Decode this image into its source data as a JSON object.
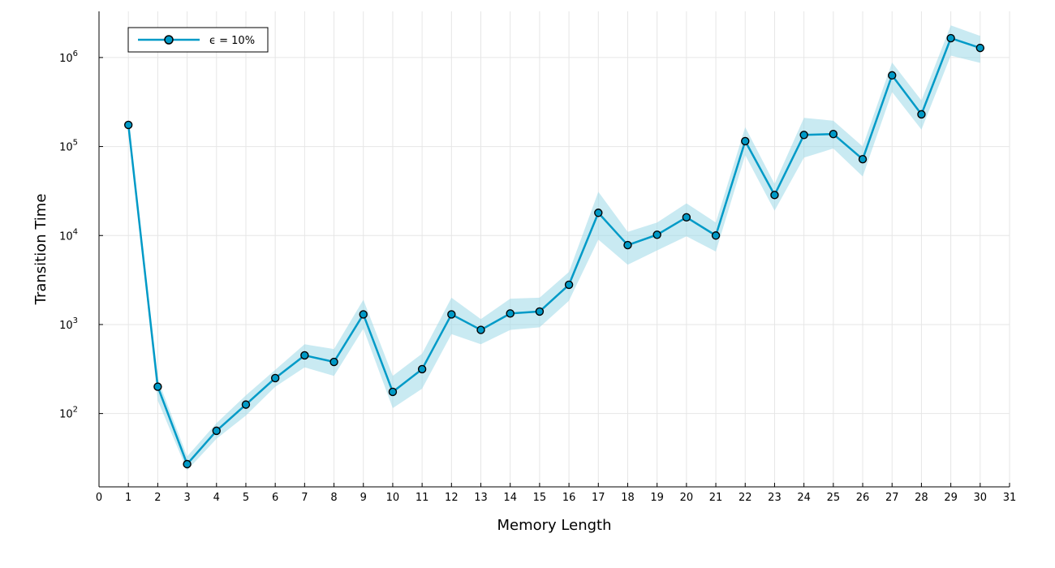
{
  "chart_data": {
    "type": "line",
    "xlabel": "Memory Length",
    "ylabel": "Transition Time",
    "xlim": [
      0,
      31
    ],
    "ylim": [
      15,
      3300000
    ],
    "yscale": "log",
    "grid": true,
    "legend_placement": "top-left",
    "xticks": [
      0,
      1,
      2,
      3,
      4,
      5,
      6,
      7,
      8,
      9,
      10,
      11,
      12,
      13,
      14,
      15,
      16,
      17,
      18,
      19,
      20,
      21,
      22,
      23,
      24,
      25,
      26,
      27,
      28,
      29,
      30,
      31
    ],
    "yticks": [
      {
        "base": "10",
        "exp": "2",
        "value": 100
      },
      {
        "base": "10",
        "exp": "3",
        "value": 1000
      },
      {
        "base": "10",
        "exp": "4",
        "value": 10000
      },
      {
        "base": "10",
        "exp": "5",
        "value": 100000
      },
      {
        "base": "10",
        "exp": "6",
        "value": 1000000
      }
    ],
    "series": [
      {
        "name": "ϵ = 10%",
        "color": "#009AC7",
        "band_color": "#9DD8E8",
        "x": [
          1,
          2,
          3,
          4,
          5,
          6,
          7,
          8,
          9,
          10,
          11,
          12,
          13,
          14,
          15,
          16,
          17,
          18,
          19,
          20,
          21,
          22,
          23,
          24,
          25,
          26,
          27,
          28,
          29,
          30
        ],
        "y": [
          175000,
          200,
          27,
          64,
          126,
          250,
          450,
          380,
          1300,
          175,
          315,
          1300,
          870,
          1330,
          1400,
          2800,
          18000,
          7800,
          10200,
          16000,
          10000,
          115000,
          28500,
          135000,
          138000,
          72000,
          630000,
          230000,
          1650000,
          1280000
        ],
        "lower": [
          175000,
          140,
          23,
          52,
          95,
          200,
          330,
          265,
          900,
          115,
          190,
          780,
          600,
          870,
          930,
          1850,
          9000,
          4700,
          6800,
          9800,
          6600,
          80000,
          19000,
          75000,
          95000,
          46000,
          410000,
          155000,
          1050000,
          870000
        ],
        "upper": [
          175000,
          245,
          33,
          78,
          160,
          310,
          600,
          530,
          1900,
          265,
          470,
          2000,
          1150,
          1950,
          2000,
          3900,
          31000,
          11000,
          14000,
          23000,
          14000,
          165000,
          38000,
          210000,
          195000,
          100000,
          880000,
          330000,
          2300000,
          1750000
        ]
      }
    ]
  }
}
